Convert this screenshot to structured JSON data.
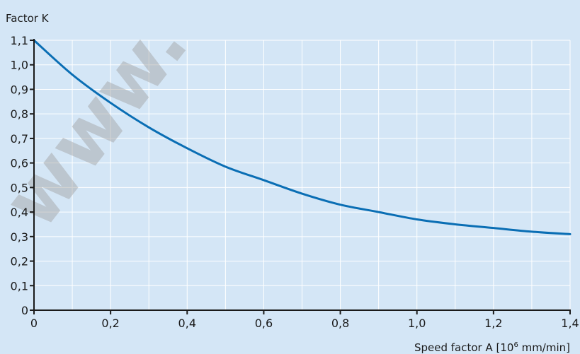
{
  "chart_data": {
    "type": "line",
    "title": "",
    "ylabel": "Factor K",
    "xlabel_prefix": "Speed factor A [10",
    "xlabel_sup": "6",
    "xlabel_suffix": " mm/min]",
    "xlim": [
      0,
      1.4
    ],
    "ylim": [
      0,
      1.1
    ],
    "grid": true,
    "x_ticks": [
      0,
      0.2,
      0.4,
      0.6,
      0.8,
      1.0,
      1.2,
      1.4
    ],
    "x_tick_labels": [
      "0",
      "0,2",
      "0,4",
      "0,6",
      "0,8",
      "1,0",
      "1,2",
      "1,4"
    ],
    "x_minor_step": 0.1,
    "y_ticks": [
      0,
      0.1,
      0.2,
      0.3,
      0.4,
      0.5,
      0.6,
      0.7,
      0.8,
      0.9,
      1.0,
      1.1
    ],
    "y_tick_labels": [
      "0",
      "0,1",
      "0,2",
      "0,3",
      "0,4",
      "0,5",
      "0,6",
      "0,7",
      "0,8",
      "0,9",
      "1,0",
      "1,1"
    ],
    "series": [
      {
        "color": "#0a6eb4",
        "x": [
          0,
          0.1,
          0.2,
          0.3,
          0.4,
          0.5,
          0.6,
          0.7,
          0.8,
          0.9,
          1.0,
          1.1,
          1.2,
          1.3,
          1.4
        ],
        "y": [
          1.1,
          0.96,
          0.845,
          0.745,
          0.66,
          0.585,
          0.53,
          0.475,
          0.43,
          0.4,
          0.37,
          0.35,
          0.335,
          0.32,
          0.31
        ]
      }
    ],
    "watermark": "www.",
    "colors": {
      "background": "#d4e6f6",
      "grid": "#ffffff",
      "axis": "#1a1a1a",
      "line": "#0a6eb4"
    }
  }
}
